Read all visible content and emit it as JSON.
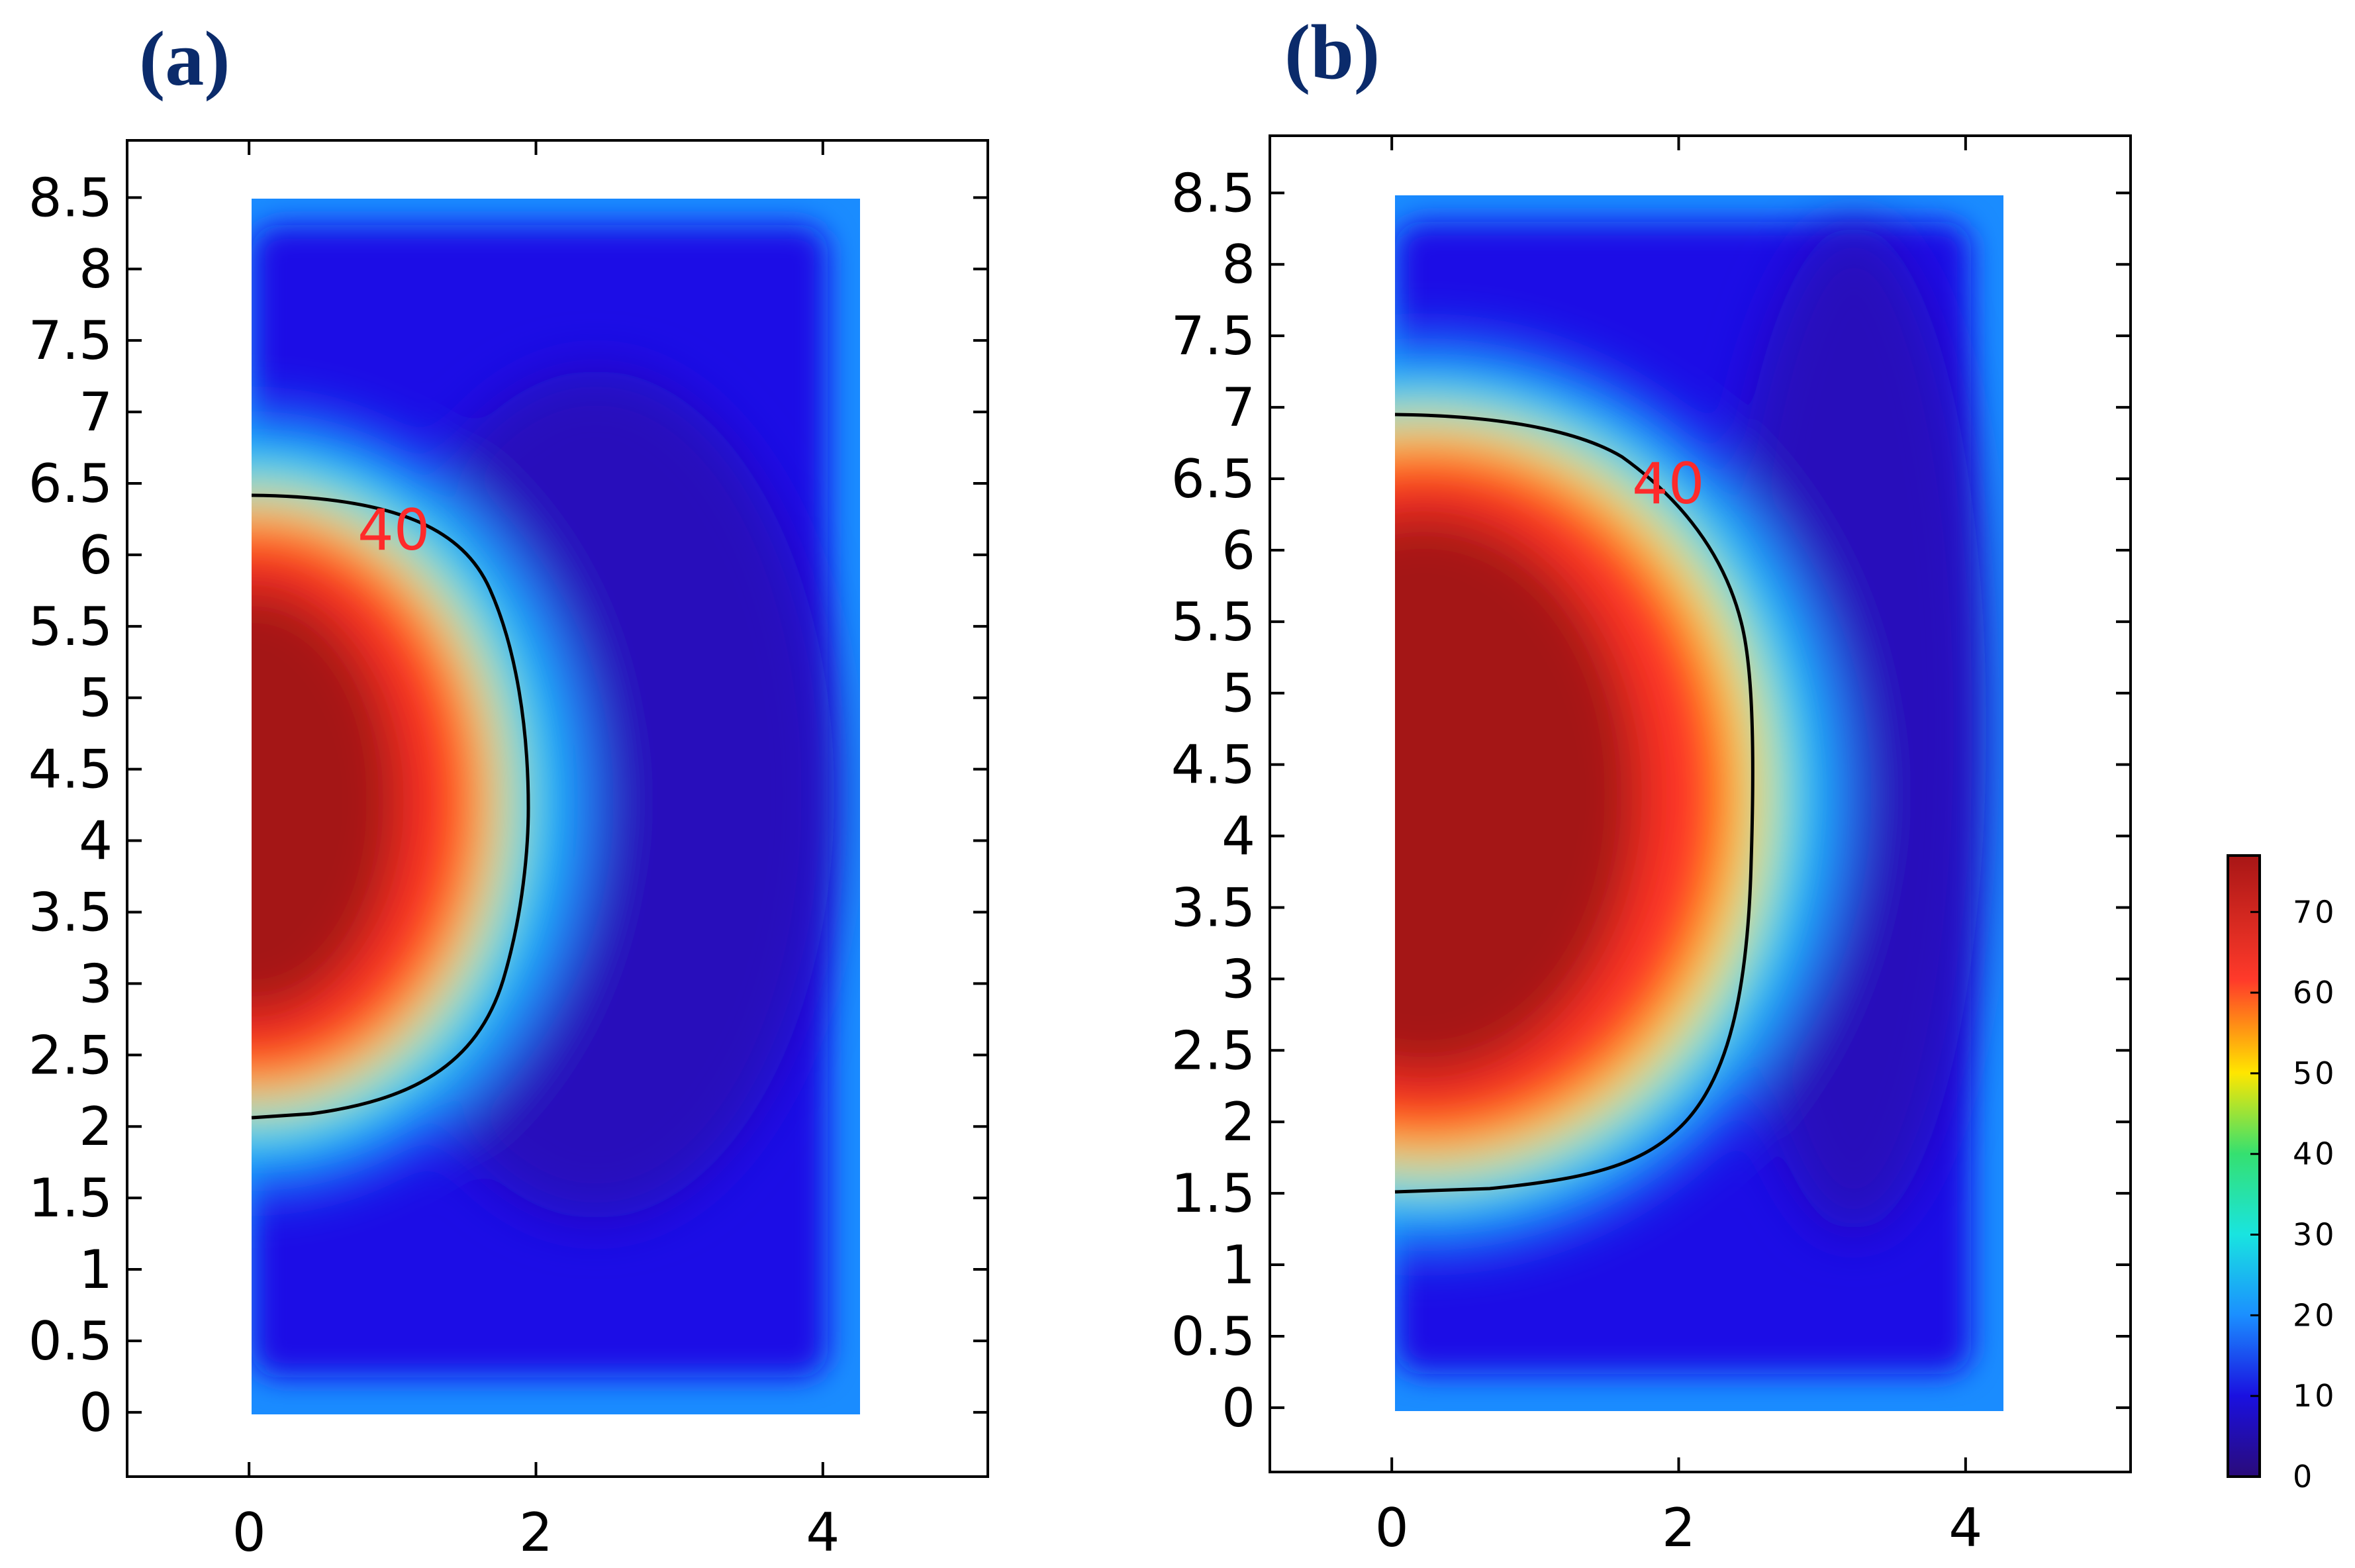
{
  "chart_data": [
    {
      "type": "heatmap",
      "panel_label": "(a)",
      "x_ticks": [
        "0",
        "2",
        "4"
      ],
      "y_ticks": [
        "0",
        "0.5",
        "1",
        "1.5",
        "2",
        "2.5",
        "3",
        "3.5",
        "4",
        "4.5",
        "5",
        "5.5",
        "6",
        "6.5",
        "7",
        "7.5",
        "8",
        "8.5"
      ],
      "xlim": [
        -0.85,
        5.15
      ],
      "ylim": [
        -0.45,
        8.9
      ],
      "domain": {
        "x": [
          0,
          4.25
        ],
        "y": [
          0,
          8.5
        ]
      },
      "hot_zone": {
        "center_y": 4.2,
        "contour_40": {
          "x_max": 1.95,
          "y_bottom": 2.07,
          "y_top": 6.4
        }
      },
      "contour_label": "40",
      "contour_label_pos": {
        "x": 1.0,
        "y": 6.1
      }
    },
    {
      "type": "heatmap",
      "panel_label": "(b)",
      "x_ticks": [
        "0",
        "2",
        "4"
      ],
      "y_ticks": [
        "0",
        "0.5",
        "1",
        "1.5",
        "2",
        "2.5",
        "3",
        "3.5",
        "4",
        "4.5",
        "5",
        "5.5",
        "6",
        "6.5",
        "7",
        "7.5",
        "8",
        "8.5"
      ],
      "xlim": [
        -0.85,
        5.15
      ],
      "ylim": [
        -0.45,
        8.9
      ],
      "domain": {
        "x": [
          0,
          4.25
        ],
        "y": [
          0,
          8.5
        ]
      },
      "hot_zone": {
        "center_y": 4.25,
        "contour_40": {
          "x_max": 2.53,
          "y_bottom": 1.52,
          "y_top": 6.97
        }
      },
      "contour_label": "40",
      "contour_label_pos": {
        "x": 1.95,
        "y": 6.45
      }
    }
  ],
  "colorbar": {
    "ticks": [
      "0",
      "10",
      "20",
      "30",
      "40",
      "50",
      "60",
      "70"
    ],
    "min": 0,
    "max": 77,
    "colors": [
      "#2a0b7a",
      "#1a10e0",
      "#1b8fff",
      "#19e4e0",
      "#35e070",
      "#ffe600",
      "#ff3a2a",
      "#a81616"
    ]
  }
}
